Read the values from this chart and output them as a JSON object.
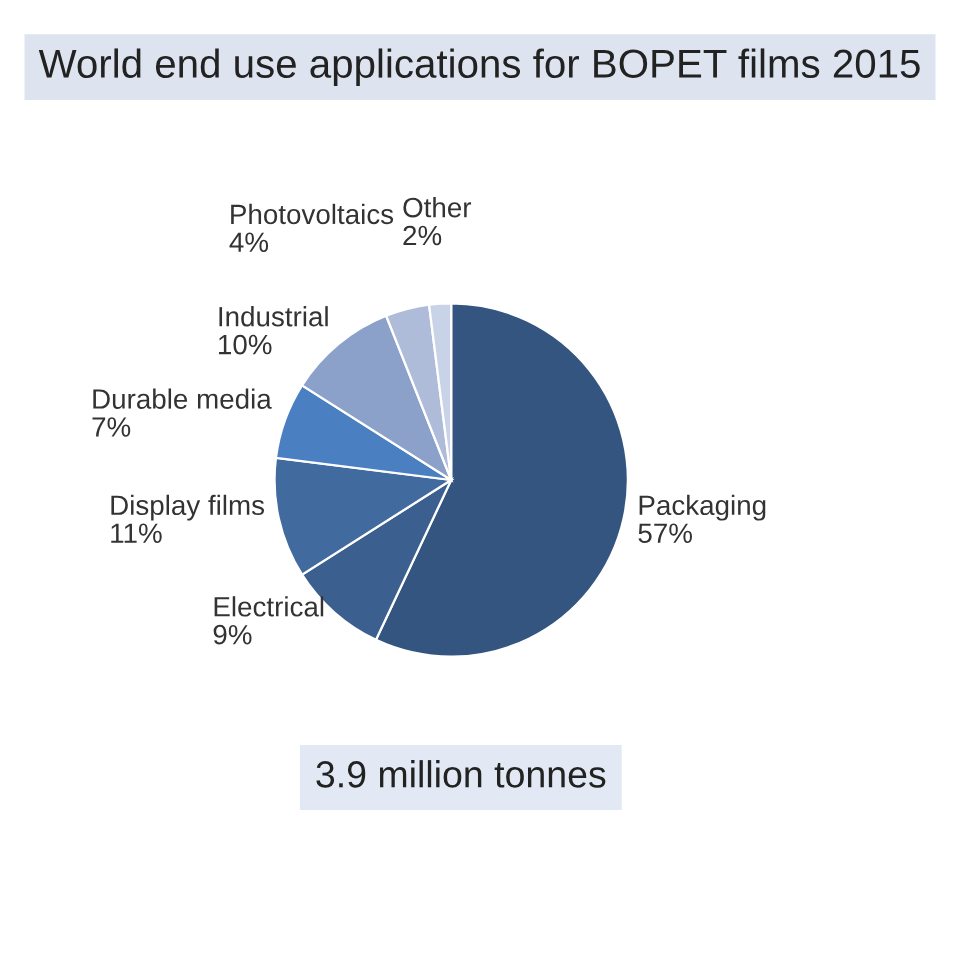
{
  "chart_data": {
    "type": "pie",
    "title": "World end use applications for BOPET films 2015",
    "categories": [
      "Packaging",
      "Electrical",
      "Display films",
      "Durable media",
      "Industrial",
      "Photovoltaics",
      "Other"
    ],
    "values": [
      57,
      9,
      11,
      7,
      10,
      4,
      2
    ],
    "value_labels": [
      "57%",
      "9%",
      "11%",
      "7%",
      "10%",
      "4%",
      "2%"
    ],
    "colors": [
      "#34557f",
      "#3b6090",
      "#416b9f",
      "#4a80c2",
      "#8ba1c9",
      "#aebcda",
      "#c9d3e7"
    ],
    "annotations": [
      "3.9 million tonnes"
    ],
    "legend": false
  }
}
